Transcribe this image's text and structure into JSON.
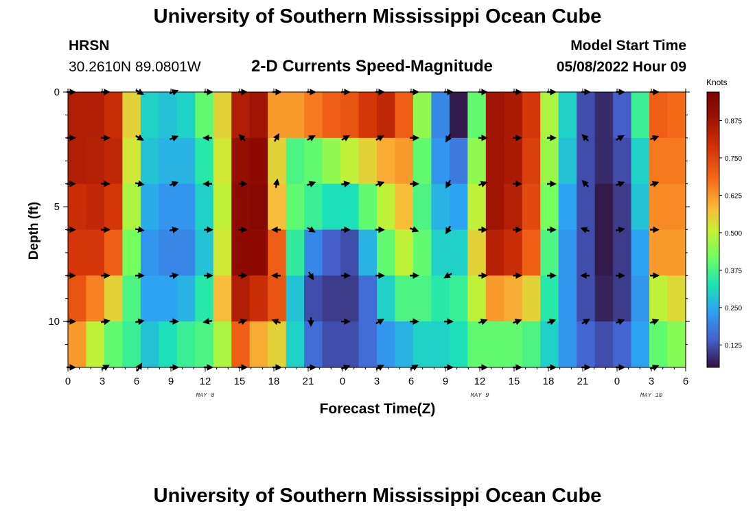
{
  "header": {
    "title": "University of Southern Mississippi Ocean Cube",
    "station": "HRSN",
    "coords": "30.2610N  89.0801W",
    "subtitle": "2-D Currents Speed-Magnitude",
    "model_start_label": "Model Start Time",
    "model_start_value": "05/08/2022 Hour 09"
  },
  "footer": {
    "title": "University of Southern Mississippi Ocean Cube"
  },
  "chart_data": {
    "type": "heatmap",
    "title": "2-D Currents Speed-Magnitude",
    "xlabel": "Forecast Time(Z)",
    "ylabel": "Depth (ft)",
    "x_tick_labels": [
      "0",
      "3",
      "6",
      "9",
      "12",
      "15",
      "18",
      "21",
      "0",
      "3",
      "6",
      "9",
      "12",
      "15",
      "18",
      "21",
      "0",
      "3",
      "6"
    ],
    "x_hours": [
      0,
      3,
      6,
      9,
      12,
      15,
      18,
      21,
      24,
      27,
      30,
      33,
      36,
      39,
      42,
      45,
      48,
      51,
      54
    ],
    "date_labels": [
      {
        "label": "MAY 8",
        "hour": 12
      },
      {
        "label": "MAY 9",
        "hour": 36
      },
      {
        "label": "MAY 10",
        "hour": 51
      }
    ],
    "y_ticks": [
      0,
      5,
      10
    ],
    "ylim": [
      0,
      12
    ],
    "xlim": [
      0,
      54
    ],
    "colorbar": {
      "title": "Knots",
      "ticks": [
        "0.125",
        "0.250",
        "0.375",
        "0.500",
        "0.625",
        "0.750",
        "0.875"
      ],
      "tick_values": [
        0.125,
        0.25,
        0.375,
        0.5,
        0.625,
        0.75,
        0.875
      ],
      "range": [
        0.05,
        0.97
      ]
    },
    "depth_bands": [
      0,
      2,
      4,
      6,
      8,
      10,
      12
    ],
    "speed_profiles": [
      [
        0.85,
        0.85,
        0.8,
        0.78,
        0.72,
        0.62
      ],
      [
        0.85,
        0.84,
        0.82,
        0.78,
        0.65,
        0.5
      ],
      [
        0.8,
        0.82,
        0.78,
        0.7,
        0.55,
        0.4
      ],
      [
        0.55,
        0.52,
        0.48,
        0.42,
        0.38,
        0.36
      ],
      [
        0.3,
        0.28,
        0.25,
        0.22,
        0.24,
        0.28
      ],
      [
        0.28,
        0.26,
        0.22,
        0.2,
        0.24,
        0.32
      ],
      [
        0.3,
        0.26,
        0.22,
        0.2,
        0.26,
        0.36
      ],
      [
        0.4,
        0.34,
        0.3,
        0.28,
        0.34,
        0.38
      ],
      [
        0.55,
        0.52,
        0.5,
        0.52,
        0.58,
        0.48
      ],
      [
        0.85,
        0.9,
        0.92,
        0.92,
        0.85,
        0.7
      ],
      [
        0.88,
        0.92,
        0.94,
        0.92,
        0.8,
        0.6
      ],
      [
        0.62,
        0.55,
        0.58,
        0.7,
        0.72,
        0.55
      ],
      [
        0.62,
        0.38,
        0.4,
        0.35,
        0.28,
        0.3
      ],
      [
        0.66,
        0.4,
        0.36,
        0.2,
        0.12,
        0.16
      ],
      [
        0.7,
        0.45,
        0.32,
        0.14,
        0.1,
        0.12
      ],
      [
        0.72,
        0.5,
        0.32,
        0.12,
        0.1,
        0.12
      ],
      [
        0.78,
        0.55,
        0.4,
        0.26,
        0.16,
        0.16
      ],
      [
        0.82,
        0.6,
        0.5,
        0.4,
        0.3,
        0.22
      ],
      [
        0.7,
        0.62,
        0.58,
        0.5,
        0.38,
        0.26
      ],
      [
        0.45,
        0.4,
        0.38,
        0.4,
        0.38,
        0.3
      ],
      [
        0.2,
        0.22,
        0.26,
        0.3,
        0.34,
        0.3
      ],
      [
        0.06,
        0.18,
        0.24,
        0.3,
        0.36,
        0.32
      ],
      [
        0.4,
        0.45,
        0.5,
        0.55,
        0.5,
        0.4
      ],
      [
        0.88,
        0.88,
        0.88,
        0.84,
        0.62,
        0.4
      ],
      [
        0.86,
        0.86,
        0.84,
        0.8,
        0.6,
        0.4
      ],
      [
        0.78,
        0.76,
        0.74,
        0.7,
        0.55,
        0.38
      ],
      [
        0.48,
        0.46,
        0.42,
        0.38,
        0.34,
        0.3
      ],
      [
        0.3,
        0.28,
        0.24,
        0.22,
        0.22,
        0.22
      ],
      [
        0.12,
        0.12,
        0.12,
        0.12,
        0.12,
        0.15
      ],
      [
        0.08,
        0.08,
        0.06,
        0.06,
        0.07,
        0.12
      ],
      [
        0.14,
        0.12,
        0.1,
        0.1,
        0.1,
        0.15
      ],
      [
        0.36,
        0.3,
        0.28,
        0.24,
        0.22,
        0.24
      ],
      [
        0.7,
        0.66,
        0.64,
        0.62,
        0.5,
        0.4
      ],
      [
        0.68,
        0.66,
        0.64,
        0.62,
        0.54,
        0.44
      ]
    ],
    "vector_hours": [
      0,
      3,
      6,
      9,
      12,
      15,
      18,
      21,
      24,
      27,
      30,
      33,
      36,
      39,
      42,
      45,
      48,
      51
    ],
    "vector_depths": [
      0,
      2,
      4,
      6,
      8,
      10,
      12
    ],
    "vector_angles_deg": [
      [
        0,
        0,
        0,
        0,
        0,
        0,
        0
      ],
      [
        0,
        0,
        0,
        0,
        0,
        -10,
        -30
      ],
      [
        30,
        30,
        10,
        10,
        0,
        -10,
        -60
      ],
      [
        -20,
        -20,
        -20,
        -10,
        -10,
        0,
        0
      ],
      [
        0,
        180,
        180,
        0,
        0,
        170,
        0
      ],
      [
        0,
        225,
        0,
        0,
        0,
        -20,
        0
      ],
      [
        0,
        -60,
        -80,
        180,
        180,
        200,
        0
      ],
      [
        0,
        -30,
        -20,
        30,
        60,
        90,
        0
      ],
      [
        0,
        -30,
        -10,
        0,
        0,
        0,
        -20
      ],
      [
        0,
        -30,
        -20,
        0,
        0,
        -30,
        -30
      ],
      [
        0,
        0,
        0,
        20,
        0,
        0,
        -30
      ],
      [
        0,
        120,
        120,
        120,
        150,
        0,
        0
      ],
      [
        0,
        0,
        -20,
        0,
        0,
        -20,
        0
      ],
      [
        0,
        0,
        0,
        0,
        0,
        -20,
        0
      ],
      [
        0,
        0,
        0,
        0,
        0,
        -20,
        0
      ],
      [
        0,
        225,
        225,
        200,
        180,
        -30,
        0
      ],
      [
        0,
        -30,
        -20,
        -10,
        0,
        -20,
        0
      ],
      [
        0,
        -20,
        -20,
        0,
        0,
        -20,
        -20
      ]
    ],
    "vector_units": "direction in degrees (screen convention), speed given by colour"
  }
}
